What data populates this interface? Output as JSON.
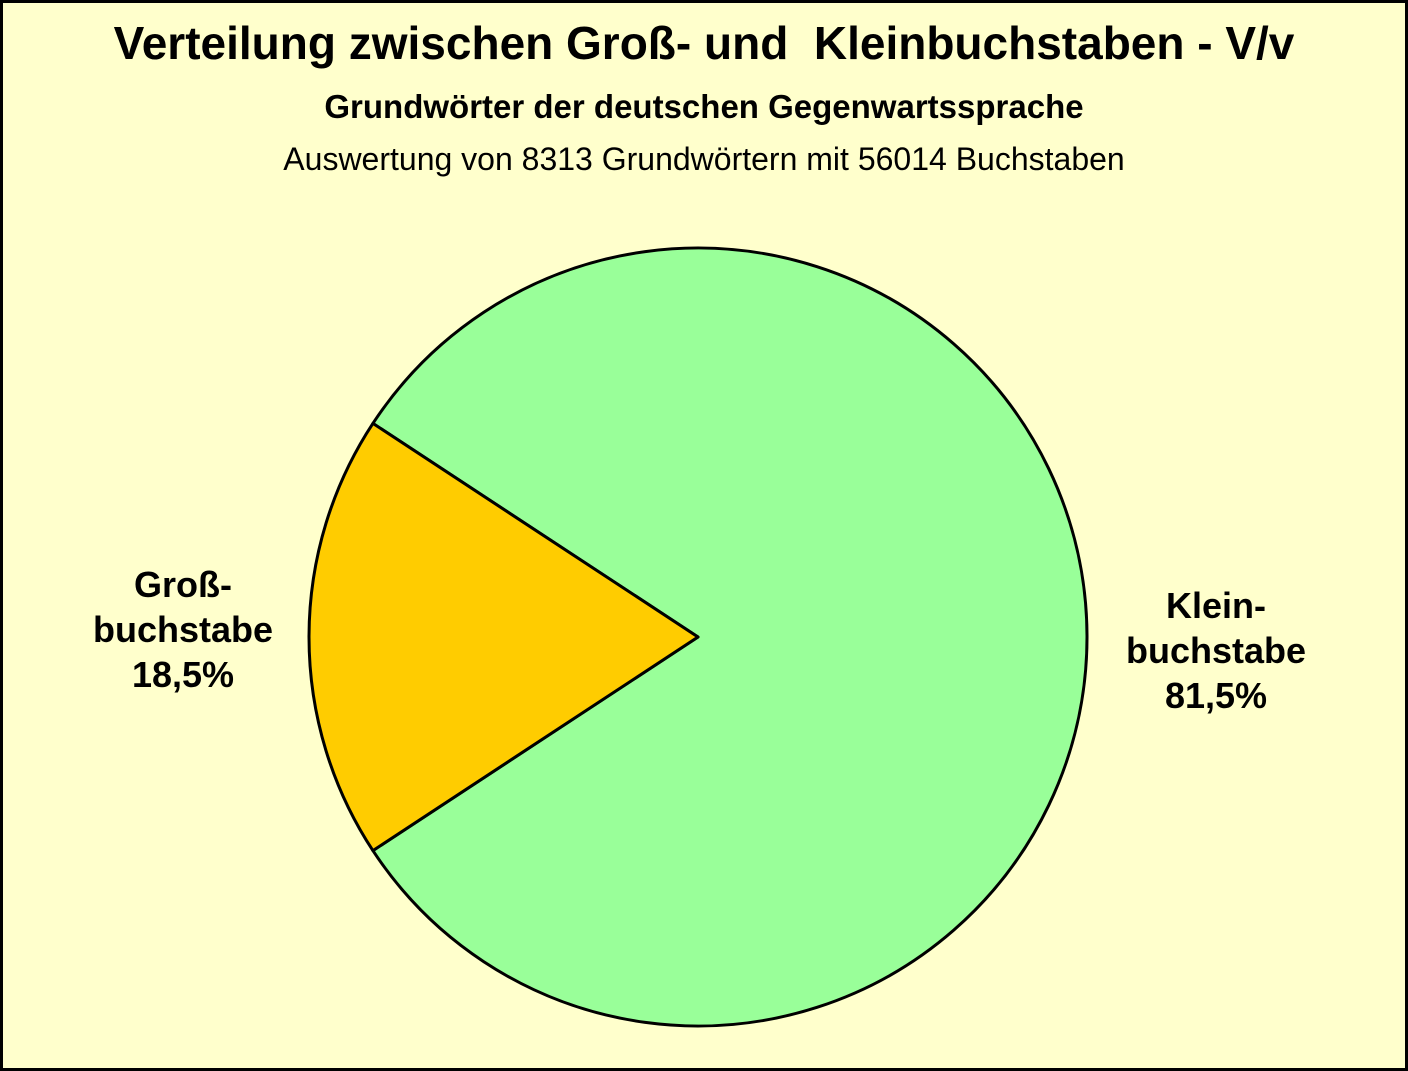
{
  "page": {
    "background_color": "#FFFFCC",
    "border_color": "#000000"
  },
  "header": {
    "title": "Verteilung zwischen Groß- und  Kleinbuchstaben - V/v",
    "subtitle": "Grundwörter der deutschen Gegenwartssprache",
    "note": "Auswertung von 8313 Grundwörtern mit 56014 Buchstaben"
  },
  "chart_data": {
    "type": "pie",
    "title": "Verteilung zwischen Groß- und  Kleinbuchstaben - V/v",
    "subtitle": "Grundwörter der deutschen Gegenwartssprache",
    "note": "Auswertung von 8313 Grundwörtern mit 56014 Buchstaben",
    "legend_position": "none",
    "stroke_color": "#000000",
    "stroke_width": 3,
    "start_angle_deg": 213.3,
    "direction": "ccw",
    "slices": [
      {
        "key": "kleinbuchstabe",
        "label": "Kleinbuchstabe",
        "label_lines": [
          "Klein-",
          "buchstabe",
          "81,5%"
        ],
        "value_pct": 81.5,
        "color": "#99FF99"
      },
      {
        "key": "grossbuchstabe",
        "label": "Großbuchstabe",
        "label_lines": [
          "Groß-",
          "buchstabe",
          "18,5%"
        ],
        "value_pct": 18.5,
        "color": "#FFCC00"
      }
    ]
  }
}
